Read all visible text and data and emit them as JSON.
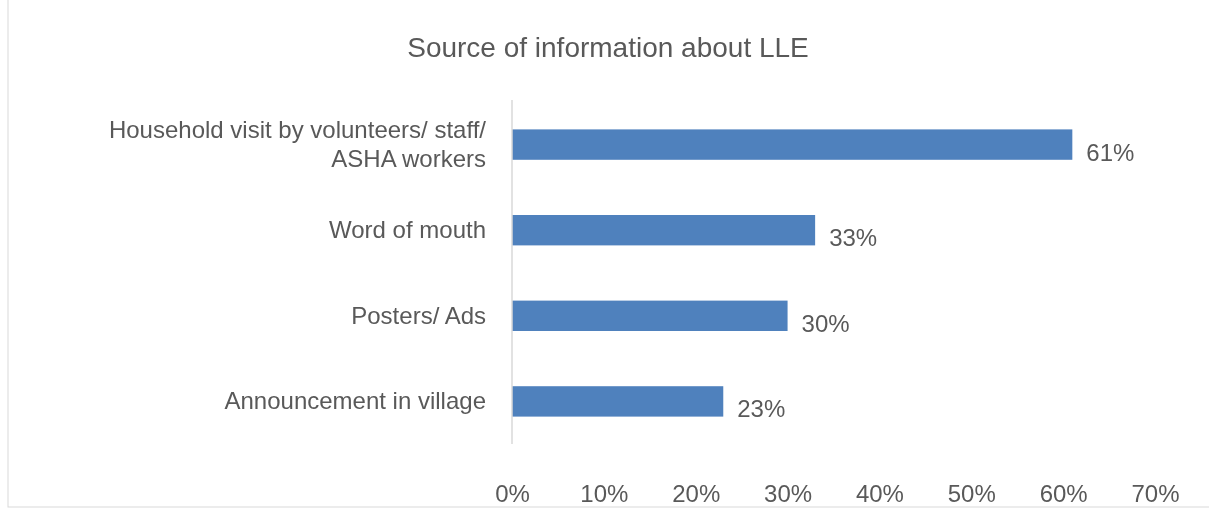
{
  "chart_data": {
    "type": "bar",
    "orientation": "horizontal",
    "title": "Source of information about LLE",
    "categories": [
      "Household visit by volunteers/ staff/ ASHA workers",
      "Word of mouth",
      "Posters/ Ads",
      "Announcement in village"
    ],
    "values": [
      61,
      33,
      30,
      23
    ],
    "value_labels": [
      "61%",
      "33%",
      "30%",
      "23%"
    ],
    "color": "#4f81bd",
    "xlim": [
      0,
      70
    ],
    "xticks": [
      {
        "value": 0,
        "label": "0%"
      },
      {
        "value": 10,
        "label": "10%"
      },
      {
        "value": 20,
        "label": "20%"
      },
      {
        "value": 30,
        "label": "30%"
      },
      {
        "value": 40,
        "label": "40%"
      },
      {
        "value": 50,
        "label": "50%"
      },
      {
        "value": 60,
        "label": "60%"
      },
      {
        "value": 70,
        "label": "70%"
      }
    ],
    "grid": false
  }
}
